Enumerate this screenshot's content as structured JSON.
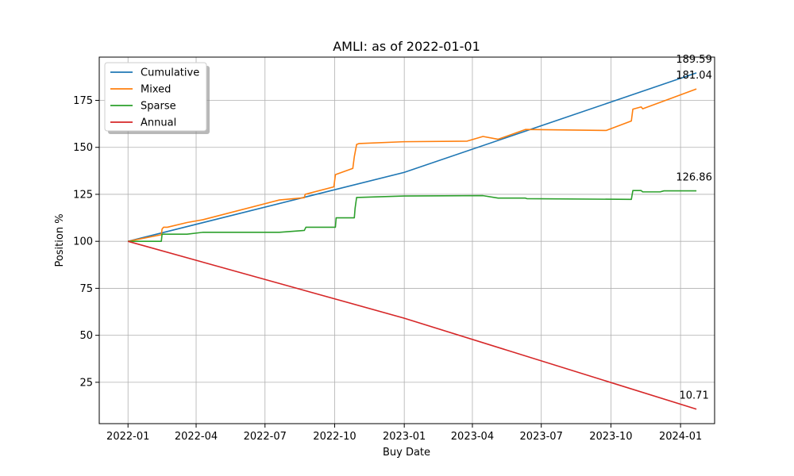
{
  "chart_data": {
    "type": "line",
    "title": "AMLI: as of 2022-01-01",
    "xlabel": "Buy Date",
    "ylabel": "Position %",
    "x_axis_type": "date",
    "xlim": [
      "2021-11-24",
      "2024-02-15"
    ],
    "ylim": [
      3,
      198
    ],
    "x_ticks": [
      "2022-01",
      "2022-04",
      "2022-07",
      "2022-10",
      "2023-01",
      "2023-04",
      "2023-07",
      "2023-10",
      "2024-01"
    ],
    "y_ticks": [
      25,
      50,
      75,
      100,
      125,
      150,
      175
    ],
    "grid": true,
    "legend_position": "top-left",
    "series": [
      {
        "name": "Cumulative",
        "color": "#1f77b4",
        "points": [
          [
            "2022-01-01",
            100
          ],
          [
            "2023-01-01",
            136.7
          ],
          [
            "2024-01-22",
            189.59
          ]
        ]
      },
      {
        "name": "Mixed",
        "color": "#ff7f0e",
        "points": [
          [
            "2022-01-01",
            100
          ],
          [
            "2022-02-14",
            103.5
          ],
          [
            "2022-02-15",
            106.5
          ],
          [
            "2022-02-17",
            107.5
          ],
          [
            "2022-02-22",
            107.5
          ],
          [
            "2022-03-20",
            110
          ],
          [
            "2022-04-10",
            111.5
          ],
          [
            "2022-07-20",
            122
          ],
          [
            "2022-08-22",
            123.2
          ],
          [
            "2022-08-23",
            125
          ],
          [
            "2022-09-30",
            129
          ],
          [
            "2022-10-02",
            135.5
          ],
          [
            "2022-10-25",
            138.8
          ],
          [
            "2022-10-27",
            145
          ],
          [
            "2022-10-30",
            151.5
          ],
          [
            "2022-11-02",
            152
          ],
          [
            "2023-01-01",
            153
          ],
          [
            "2023-03-25",
            153.3
          ],
          [
            "2023-04-15",
            155.8
          ],
          [
            "2023-05-05",
            154.3
          ],
          [
            "2023-06-10",
            159.5
          ],
          [
            "2023-09-25",
            159
          ],
          [
            "2023-10-28",
            164
          ],
          [
            "2023-10-30",
            170.3
          ],
          [
            "2023-11-10",
            171.5
          ],
          [
            "2023-11-12",
            170.5
          ],
          [
            "2024-01-22",
            181.04
          ]
        ]
      },
      {
        "name": "Sparse",
        "color": "#2ca02c",
        "points": [
          [
            "2022-01-01",
            100
          ],
          [
            "2022-02-14",
            100
          ],
          [
            "2022-02-15",
            103.8
          ],
          [
            "2022-03-20",
            103.8
          ],
          [
            "2022-04-10",
            104.8
          ],
          [
            "2022-07-20",
            104.8
          ],
          [
            "2022-08-22",
            105.8
          ],
          [
            "2022-08-24",
            107.5
          ],
          [
            "2022-10-02",
            107.5
          ],
          [
            "2022-10-03",
            112.5
          ],
          [
            "2022-10-27",
            112.5
          ],
          [
            "2022-10-28",
            117.5
          ],
          [
            "2022-10-30",
            123.3
          ],
          [
            "2023-01-01",
            124.1
          ],
          [
            "2023-04-15",
            124.3
          ],
          [
            "2023-05-05",
            123
          ],
          [
            "2023-06-10",
            123
          ],
          [
            "2023-06-12",
            122.7
          ],
          [
            "2023-10-28",
            122.3
          ],
          [
            "2023-10-30",
            127
          ],
          [
            "2023-11-10",
            127
          ],
          [
            "2023-11-12",
            126.3
          ],
          [
            "2023-12-05",
            126.3
          ],
          [
            "2023-12-10",
            126.86
          ],
          [
            "2024-01-22",
            126.86
          ]
        ]
      },
      {
        "name": "Annual",
        "color": "#d62728",
        "points": [
          [
            "2022-01-01",
            100
          ],
          [
            "2023-01-01",
            59.1
          ],
          [
            "2024-01-22",
            10.71
          ]
        ]
      }
    ],
    "annotations": [
      {
        "text": "189.59",
        "x": "2024-01-22",
        "y": 189.59
      },
      {
        "text": "181.04",
        "x": "2024-01-22",
        "y": 181.04
      },
      {
        "text": "126.86",
        "x": "2024-01-22",
        "y": 126.86
      },
      {
        "text": "10.71",
        "x": "2024-01-22",
        "y": 10.71
      }
    ]
  }
}
